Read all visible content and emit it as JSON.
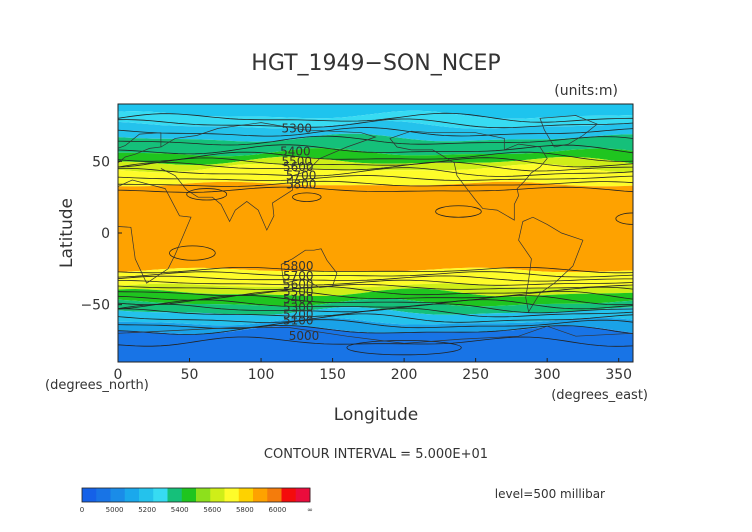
{
  "chart_data": {
    "type": "heatmap",
    "title": "HGT_1949−SON_NCEP",
    "units_note": "(units:m)",
    "xlabel": "Longitude",
    "xlabel_units": "(degrees_east)",
    "ylabel": "Latitude",
    "ylabel_units": "(degrees_north)",
    "xlim": [
      0,
      360
    ],
    "ylim": [
      -90,
      90
    ],
    "x_ticks": [
      0,
      50,
      100,
      150,
      200,
      250,
      300,
      350
    ],
    "y_ticks": [
      -50,
      0,
      50
    ],
    "contour_interval_text": "CONTOUR INTERVAL = 5.000E+01",
    "level_text": "level=500 millibar",
    "contour_labels": [
      {
        "label": "5300",
        "lon": 125,
        "lat": 73
      },
      {
        "label": "5400",
        "lon": 124,
        "lat": 57
      },
      {
        "label": "5500",
        "lon": 125,
        "lat": 50
      },
      {
        "label": "5600",
        "lon": 126,
        "lat": 46
      },
      {
        "label": "5700",
        "lon": 128,
        "lat": 40
      },
      {
        "label": "5800",
        "lon": 128,
        "lat": 34
      },
      {
        "label": "5800",
        "lon": 126,
        "lat": -23
      },
      {
        "label": "5700",
        "lon": 126,
        "lat": -30
      },
      {
        "label": "5600",
        "lon": 126,
        "lat": -36
      },
      {
        "label": "5500",
        "lon": 126,
        "lat": -41
      },
      {
        "label": "5400",
        "lon": 126,
        "lat": -46
      },
      {
        "label": "5300",
        "lon": 126,
        "lat": -52
      },
      {
        "label": "5200",
        "lon": 126,
        "lat": -57
      },
      {
        "label": "5100",
        "lon": 126,
        "lat": -61
      },
      {
        "label": "5000",
        "lon": 130,
        "lat": -72
      }
    ],
    "color_bands": [
      {
        "lat_from": 90,
        "lat_to": 82,
        "color": "#1ec4ee"
      },
      {
        "lat_from": 82,
        "lat_to": 75,
        "color": "#37dbf2"
      },
      {
        "lat_from": 75,
        "lat_to": 66,
        "color": "#24c2ec"
      },
      {
        "lat_from": 66,
        "lat_to": 56,
        "color": "#15c07a"
      },
      {
        "lat_from": 56,
        "lat_to": 50,
        "color": "#1fc51f"
      },
      {
        "lat_from": 50,
        "lat_to": 45,
        "color": "#cfee18"
      },
      {
        "lat_from": 45,
        "lat_to": 34,
        "color": "#fefc2a"
      },
      {
        "lat_from": 34,
        "lat_to": -26,
        "color": "#fea200"
      },
      {
        "lat_from": -26,
        "lat_to": -37,
        "color": "#fefc2a"
      },
      {
        "lat_from": -37,
        "lat_to": -42,
        "color": "#cfee18"
      },
      {
        "lat_from": -42,
        "lat_to": -49,
        "color": "#1fc51f"
      },
      {
        "lat_from": -49,
        "lat_to": -55,
        "color": "#15c07a"
      },
      {
        "lat_from": -55,
        "lat_to": -62,
        "color": "#24c2ec"
      },
      {
        "lat_from": -62,
        "lat_to": -68,
        "color": "#1aa2e8"
      },
      {
        "lat_from": -68,
        "lat_to": -90,
        "color": "#1874e6"
      }
    ],
    "colorbar": {
      "labels": [
        "0",
        "5000",
        "5200",
        "5400",
        "5600",
        "5800",
        "6000",
        "∞"
      ],
      "colors": [
        "#1561e8",
        "#1874e6",
        "#1a8ce8",
        "#1aa8ec",
        "#24c2ec",
        "#37dbf2",
        "#15c07a",
        "#1fc51f",
        "#8de01c",
        "#cfee18",
        "#fefc2a",
        "#fed200",
        "#fea200",
        "#f47c0c",
        "#f40c0c",
        "#ea0c3c"
      ]
    }
  }
}
